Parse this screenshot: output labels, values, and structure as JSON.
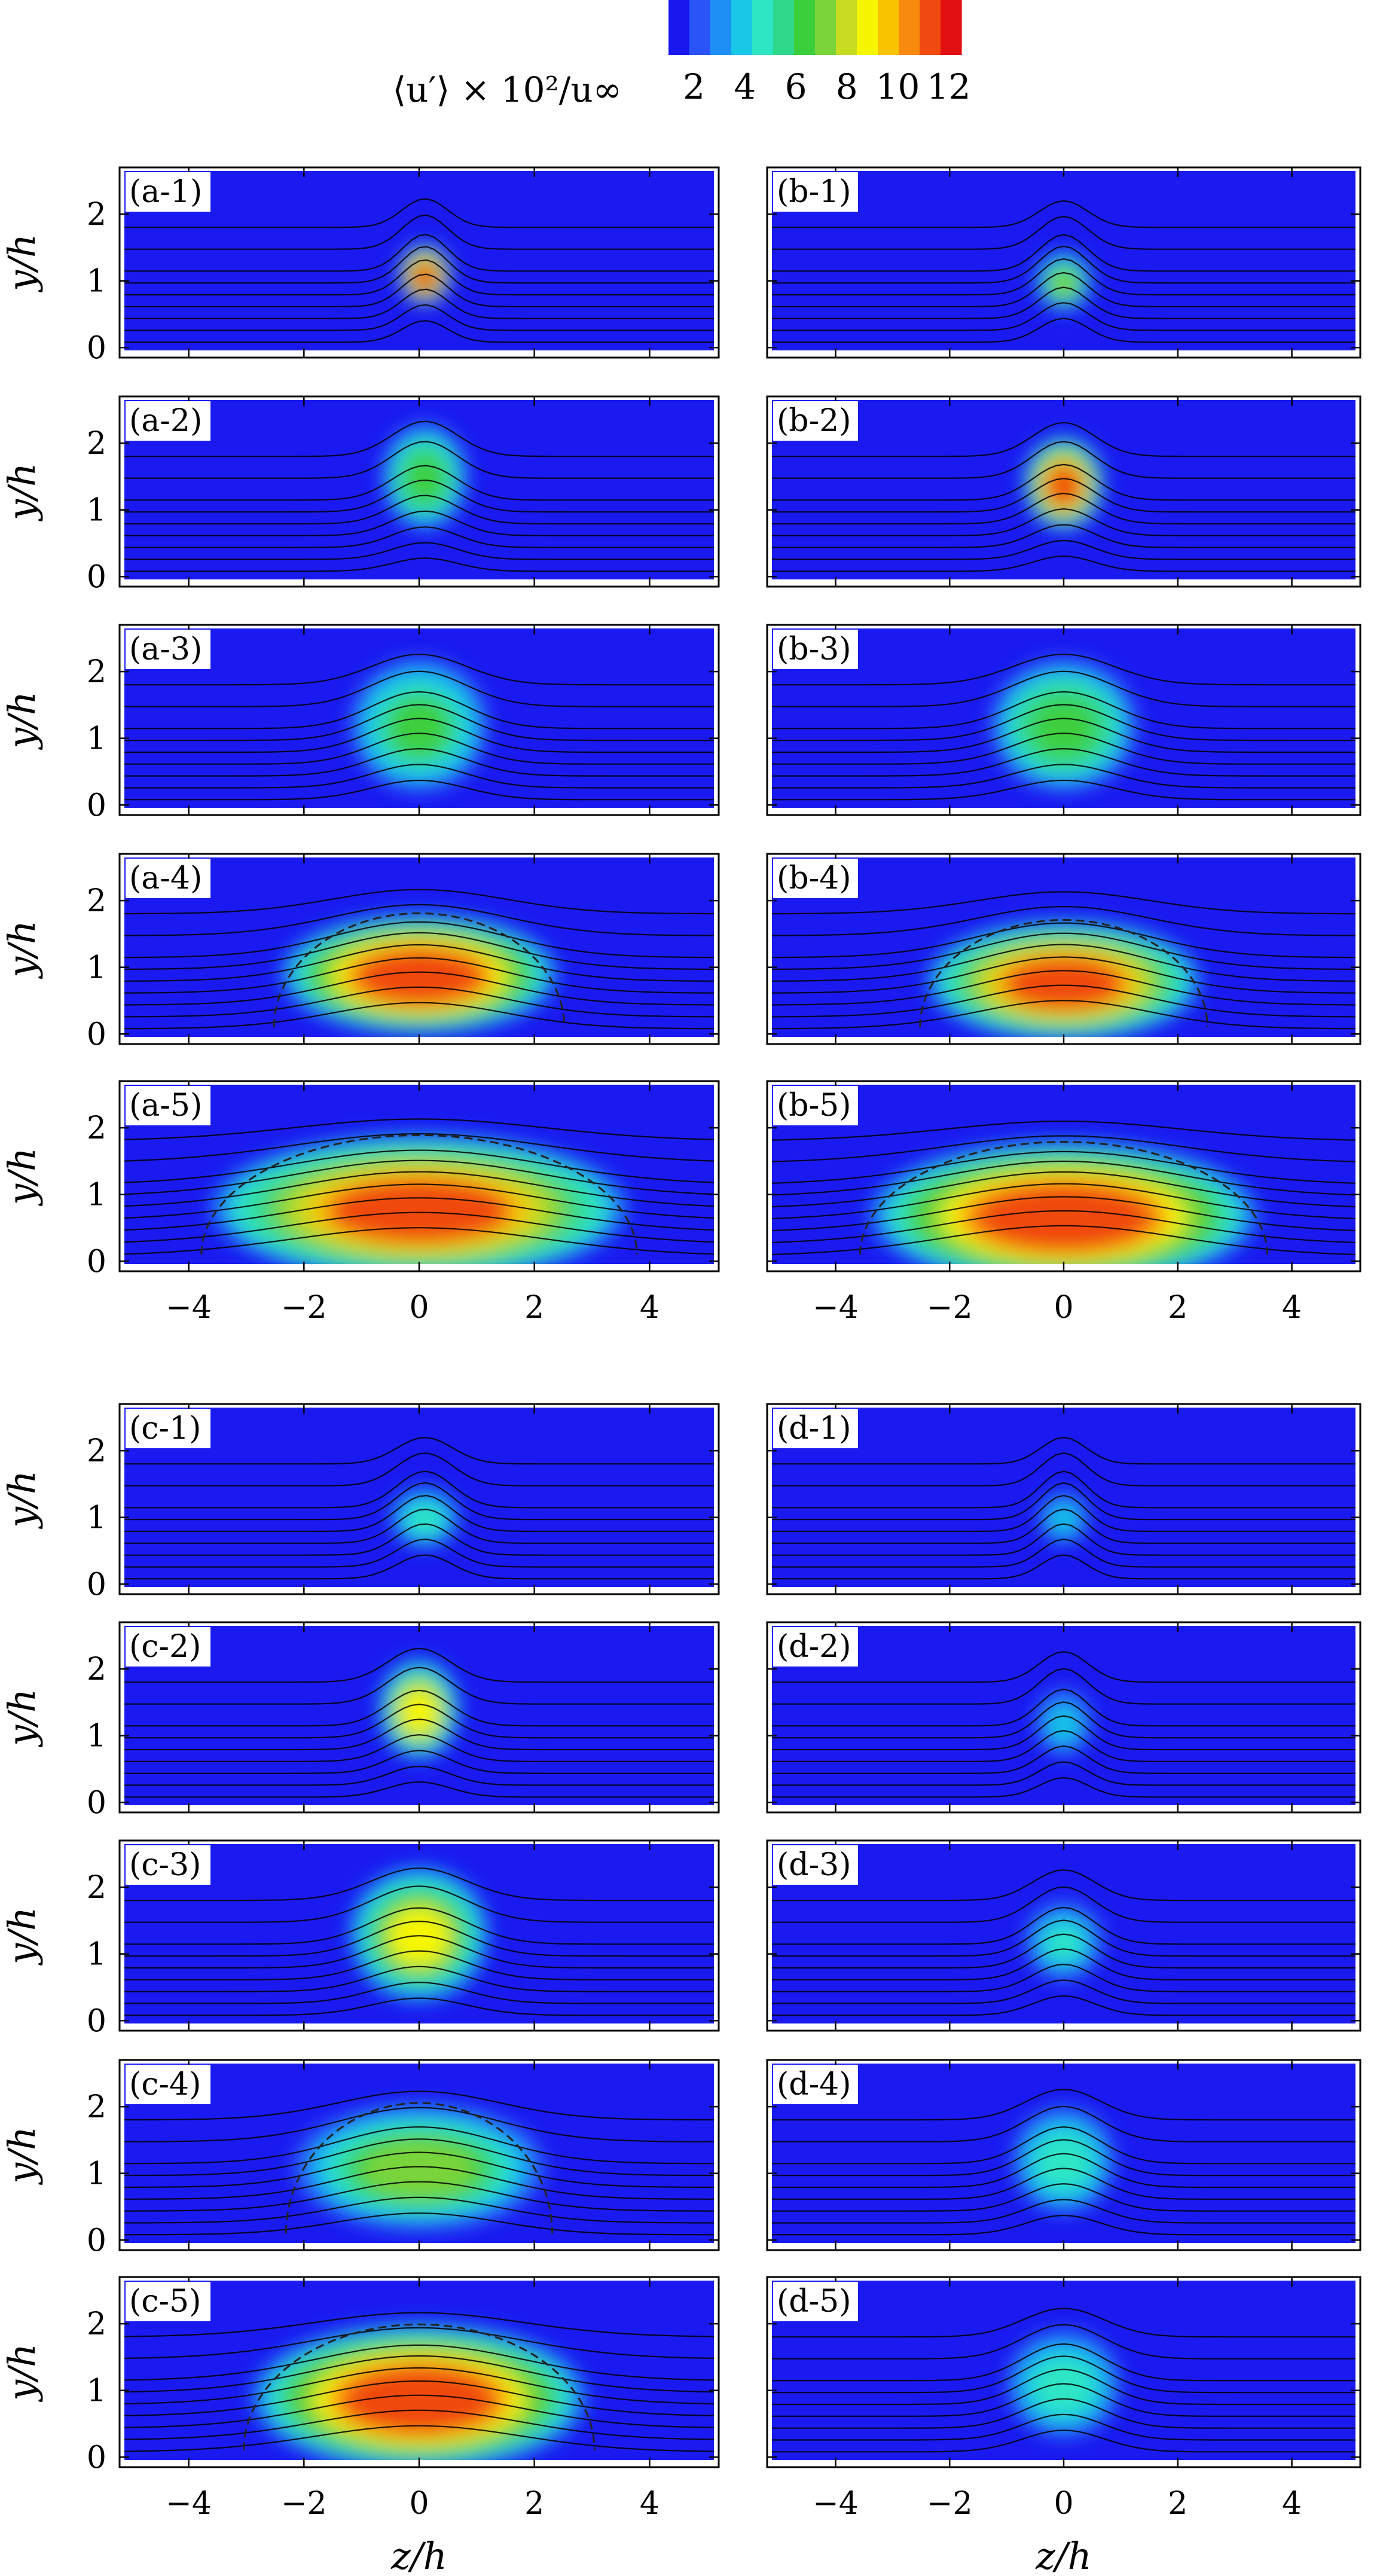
{
  "colorbar": {
    "title": "⟨u′⟩ × 10²/u∞",
    "ticks": [
      "2",
      "4",
      "6",
      "8",
      "10",
      "12"
    ],
    "tick_values": [
      2,
      4,
      6,
      8,
      10,
      12
    ],
    "range": [
      1,
      12.5
    ],
    "colors": [
      "#1818ee",
      "#2a54f8",
      "#1e8ff4",
      "#19c7e6",
      "#2ee6c4",
      "#30d88c",
      "#3ccf3c",
      "#7ad43a",
      "#c8dc22",
      "#f6f600",
      "#f8c400",
      "#f88a10",
      "#f04a10",
      "#e01010"
    ]
  },
  "axes": {
    "ylabel": "y/h",
    "xlabel": "z/h",
    "x_ticks": [
      "−4",
      "−2",
      "0",
      "2",
      "4"
    ],
    "x_tick_values": [
      -4,
      -2,
      0,
      2,
      4
    ],
    "y_ticks": [
      "0",
      "1",
      "2"
    ],
    "y_tick_values": [
      0,
      1,
      2
    ],
    "xlim": [
      -5.2,
      5.2
    ],
    "ylim": [
      -0.15,
      2.7
    ]
  },
  "chart_data": {
    "type": "heatmap",
    "quantity": "⟨u′⟩ × 10²/u∞",
    "x_axis": "z/h",
    "y_axis": "y/h",
    "panels": [
      {
        "label": "(a-1)",
        "col": 0,
        "row": 0,
        "peak_value": 12,
        "center_z": 0.1,
        "center_y": 1.1,
        "spread_z": 0.45,
        "spread_y": 0.45
      },
      {
        "label": "(b-1)",
        "col": 1,
        "row": 0,
        "peak_value": 7,
        "center_z": 0.0,
        "center_y": 1.0,
        "spread_z": 0.5,
        "spread_y": 0.45
      },
      {
        "label": "(a-2)",
        "col": 0,
        "row": 1,
        "peak_value": 6.5,
        "center_z": 0.1,
        "center_y": 1.5,
        "spread_z": 0.75,
        "spread_y": 0.8
      },
      {
        "label": "(b-2)",
        "col": 1,
        "row": 1,
        "peak_value": 11,
        "center_z": 0.0,
        "center_y": 1.4,
        "spread_z": 0.7,
        "spread_y": 0.7
      },
      {
        "label": "(a-3)",
        "col": 0,
        "row": 2,
        "peak_value": 6,
        "center_z": 0.0,
        "center_y": 1.2,
        "spread_z": 1.2,
        "spread_y": 1.0
      },
      {
        "label": "(b-3)",
        "col": 1,
        "row": 2,
        "peak_value": 6.5,
        "center_z": 0.0,
        "center_y": 1.2,
        "spread_z": 1.3,
        "spread_y": 1.0
      },
      {
        "label": "(a-4)",
        "col": 0,
        "row": 3,
        "peak_value": 11.5,
        "center_z": 0.0,
        "center_y": 0.9,
        "spread_z": 2.4,
        "spread_y": 0.9
      },
      {
        "label": "(b-4)",
        "col": 1,
        "row": 3,
        "peak_value": 11,
        "center_z": 0.0,
        "center_y": 0.8,
        "spread_z": 2.4,
        "spread_y": 0.9
      },
      {
        "label": "(a-5)",
        "col": 0,
        "row": 4,
        "peak_value": 11,
        "center_z": 0.0,
        "center_y": 0.8,
        "spread_z": 3.6,
        "spread_y": 1.1
      },
      {
        "label": "(b-5)",
        "col": 1,
        "row": 4,
        "peak_value": 11.5,
        "center_z": 0.0,
        "center_y": 0.7,
        "spread_z": 3.4,
        "spread_y": 1.1
      },
      {
        "label": "(c-1)",
        "col": 0,
        "row": 5,
        "peak_value": 5,
        "center_z": 0.1,
        "center_y": 1.0,
        "spread_z": 0.6,
        "spread_y": 0.45
      },
      {
        "label": "(d-1)",
        "col": 1,
        "row": 5,
        "peak_value": 4,
        "center_z": 0.0,
        "center_y": 1.0,
        "spread_z": 0.45,
        "spread_y": 0.4
      },
      {
        "label": "(c-2)",
        "col": 0,
        "row": 6,
        "peak_value": 9,
        "center_z": 0.0,
        "center_y": 1.4,
        "spread_z": 0.7,
        "spread_y": 0.75
      },
      {
        "label": "(d-2)",
        "col": 1,
        "row": 6,
        "peak_value": 4,
        "center_z": 0.0,
        "center_y": 1.2,
        "spread_z": 0.5,
        "spread_y": 0.5
      },
      {
        "label": "(c-3)",
        "col": 0,
        "row": 7,
        "peak_value": 8.5,
        "center_z": 0.0,
        "center_y": 1.3,
        "spread_z": 1.2,
        "spread_y": 1.0
      },
      {
        "label": "(d-3)",
        "col": 1,
        "row": 7,
        "peak_value": 4.5,
        "center_z": 0.0,
        "center_y": 1.2,
        "spread_z": 0.7,
        "spread_y": 0.6
      },
      {
        "label": "(c-4)",
        "col": 0,
        "row": 8,
        "peak_value": 7.5,
        "center_z": 0.0,
        "center_y": 1.1,
        "spread_z": 2.2,
        "spread_y": 0.95
      },
      {
        "label": "(d-4)",
        "col": 1,
        "row": 8,
        "peak_value": 5,
        "center_z": 0.0,
        "center_y": 1.2,
        "spread_z": 0.9,
        "spread_y": 0.8
      },
      {
        "label": "(c-5)",
        "col": 0,
        "row": 9,
        "peak_value": 11.5,
        "center_z": 0.0,
        "center_y": 0.9,
        "spread_z": 2.9,
        "spread_y": 1.1
      },
      {
        "label": "(d-5)",
        "col": 1,
        "row": 9,
        "peak_value": 5,
        "center_z": 0.0,
        "center_y": 1.1,
        "spread_z": 1.0,
        "spread_y": 0.8
      }
    ]
  }
}
